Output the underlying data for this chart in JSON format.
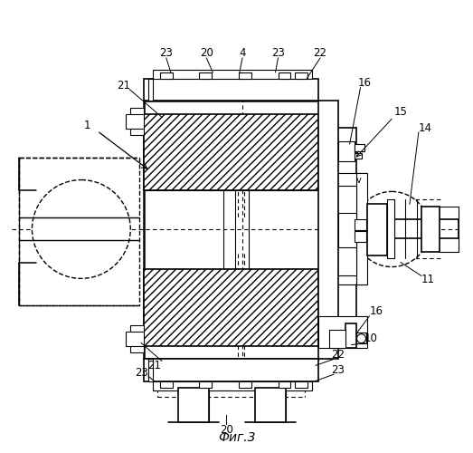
{
  "fig_label": "Фиг.3",
  "background_color": "#ffffff"
}
